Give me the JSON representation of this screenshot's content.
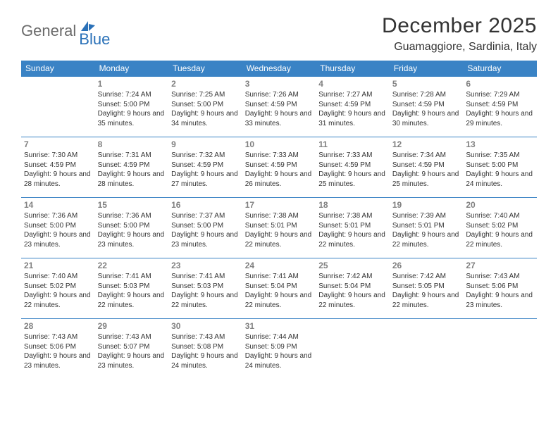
{
  "logo": {
    "general": "General",
    "blue": "Blue"
  },
  "title": "December 2025",
  "subtitle": "Guamaggiore, Sardinia, Italy",
  "colors": {
    "header_bg": "#3a83c5",
    "header_text": "#ffffff",
    "cell_border": "#3a83c5",
    "daynum": "#808080",
    "body_text": "#333333",
    "logo_gray": "#6b6b6b",
    "logo_blue": "#2a71b8"
  },
  "weekdays": [
    "Sunday",
    "Monday",
    "Tuesday",
    "Wednesday",
    "Thursday",
    "Friday",
    "Saturday"
  ],
  "weeks": [
    [
      null,
      {
        "n": "1",
        "sr": "7:24 AM",
        "ss": "5:00 PM",
        "dl": "9 hours and 35 minutes."
      },
      {
        "n": "2",
        "sr": "7:25 AM",
        "ss": "5:00 PM",
        "dl": "9 hours and 34 minutes."
      },
      {
        "n": "3",
        "sr": "7:26 AM",
        "ss": "4:59 PM",
        "dl": "9 hours and 33 minutes."
      },
      {
        "n": "4",
        "sr": "7:27 AM",
        "ss": "4:59 PM",
        "dl": "9 hours and 31 minutes."
      },
      {
        "n": "5",
        "sr": "7:28 AM",
        "ss": "4:59 PM",
        "dl": "9 hours and 30 minutes."
      },
      {
        "n": "6",
        "sr": "7:29 AM",
        "ss": "4:59 PM",
        "dl": "9 hours and 29 minutes."
      }
    ],
    [
      {
        "n": "7",
        "sr": "7:30 AM",
        "ss": "4:59 PM",
        "dl": "9 hours and 28 minutes."
      },
      {
        "n": "8",
        "sr": "7:31 AM",
        "ss": "4:59 PM",
        "dl": "9 hours and 28 minutes."
      },
      {
        "n": "9",
        "sr": "7:32 AM",
        "ss": "4:59 PM",
        "dl": "9 hours and 27 minutes."
      },
      {
        "n": "10",
        "sr": "7:33 AM",
        "ss": "4:59 PM",
        "dl": "9 hours and 26 minutes."
      },
      {
        "n": "11",
        "sr": "7:33 AM",
        "ss": "4:59 PM",
        "dl": "9 hours and 25 minutes."
      },
      {
        "n": "12",
        "sr": "7:34 AM",
        "ss": "4:59 PM",
        "dl": "9 hours and 25 minutes."
      },
      {
        "n": "13",
        "sr": "7:35 AM",
        "ss": "5:00 PM",
        "dl": "9 hours and 24 minutes."
      }
    ],
    [
      {
        "n": "14",
        "sr": "7:36 AM",
        "ss": "5:00 PM",
        "dl": "9 hours and 23 minutes."
      },
      {
        "n": "15",
        "sr": "7:36 AM",
        "ss": "5:00 PM",
        "dl": "9 hours and 23 minutes."
      },
      {
        "n": "16",
        "sr": "7:37 AM",
        "ss": "5:00 PM",
        "dl": "9 hours and 23 minutes."
      },
      {
        "n": "17",
        "sr": "7:38 AM",
        "ss": "5:01 PM",
        "dl": "9 hours and 22 minutes."
      },
      {
        "n": "18",
        "sr": "7:38 AM",
        "ss": "5:01 PM",
        "dl": "9 hours and 22 minutes."
      },
      {
        "n": "19",
        "sr": "7:39 AM",
        "ss": "5:01 PM",
        "dl": "9 hours and 22 minutes."
      },
      {
        "n": "20",
        "sr": "7:40 AM",
        "ss": "5:02 PM",
        "dl": "9 hours and 22 minutes."
      }
    ],
    [
      {
        "n": "21",
        "sr": "7:40 AM",
        "ss": "5:02 PM",
        "dl": "9 hours and 22 minutes."
      },
      {
        "n": "22",
        "sr": "7:41 AM",
        "ss": "5:03 PM",
        "dl": "9 hours and 22 minutes."
      },
      {
        "n": "23",
        "sr": "7:41 AM",
        "ss": "5:03 PM",
        "dl": "9 hours and 22 minutes."
      },
      {
        "n": "24",
        "sr": "7:41 AM",
        "ss": "5:04 PM",
        "dl": "9 hours and 22 minutes."
      },
      {
        "n": "25",
        "sr": "7:42 AM",
        "ss": "5:04 PM",
        "dl": "9 hours and 22 minutes."
      },
      {
        "n": "26",
        "sr": "7:42 AM",
        "ss": "5:05 PM",
        "dl": "9 hours and 22 minutes."
      },
      {
        "n": "27",
        "sr": "7:43 AM",
        "ss": "5:06 PM",
        "dl": "9 hours and 23 minutes."
      }
    ],
    [
      {
        "n": "28",
        "sr": "7:43 AM",
        "ss": "5:06 PM",
        "dl": "9 hours and 23 minutes."
      },
      {
        "n": "29",
        "sr": "7:43 AM",
        "ss": "5:07 PM",
        "dl": "9 hours and 23 minutes."
      },
      {
        "n": "30",
        "sr": "7:43 AM",
        "ss": "5:08 PM",
        "dl": "9 hours and 24 minutes."
      },
      {
        "n": "31",
        "sr": "7:44 AM",
        "ss": "5:09 PM",
        "dl": "9 hours and 24 minutes."
      },
      null,
      null,
      null
    ]
  ],
  "labels": {
    "sunrise": "Sunrise: ",
    "sunset": "Sunset: ",
    "daylight": "Daylight: "
  }
}
